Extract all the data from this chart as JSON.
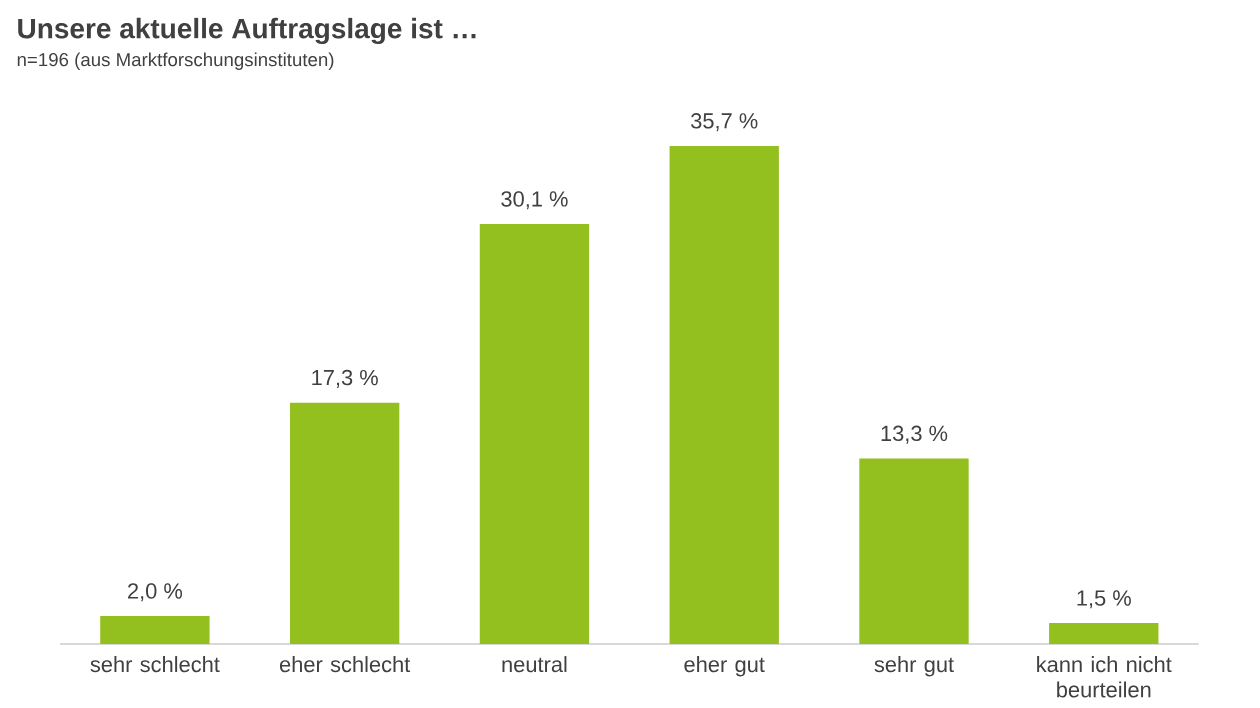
{
  "chart_data": {
    "type": "bar",
    "title": "Unsere aktuelle Auftragslage ist …",
    "subtitle": "n=196 (aus Marktforschungsinstituten)",
    "categories": [
      "sehr schlecht",
      "eher schlecht",
      "neutral",
      "eher gut",
      "sehr gut",
      "kann ich nicht beurteilen"
    ],
    "values": [
      2.0,
      17.3,
      30.1,
      35.7,
      13.3,
      1.5
    ],
    "value_labels": [
      "2,0 %",
      "17,3 %",
      "30,1 %",
      "35,7 %",
      "13,3 %",
      "1,5 %"
    ],
    "color": "#93c01f"
  }
}
